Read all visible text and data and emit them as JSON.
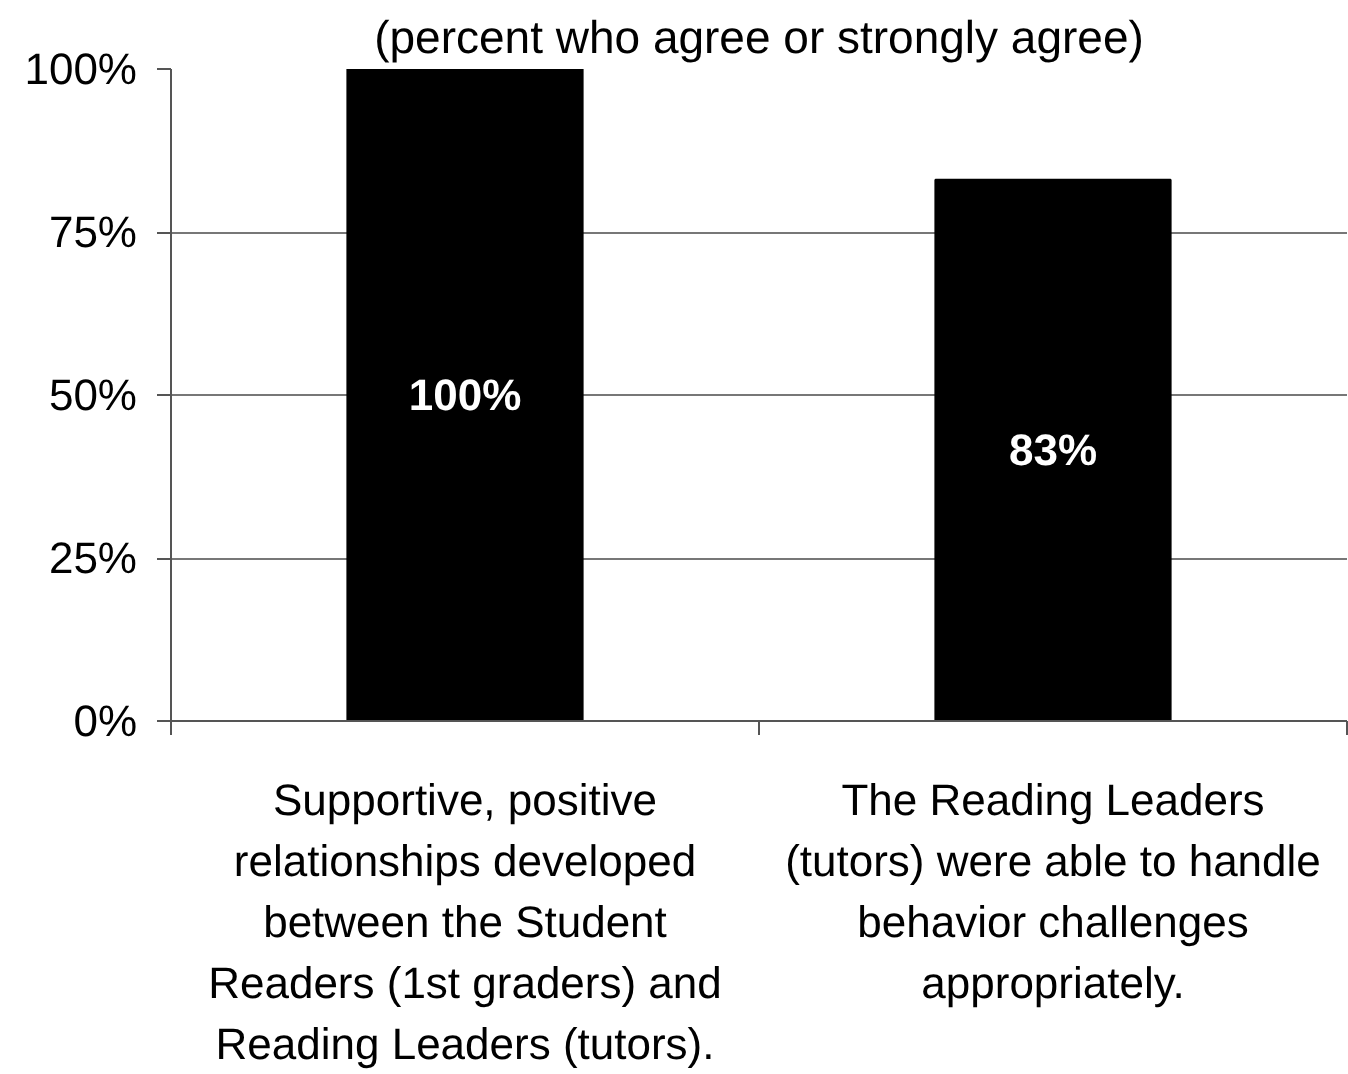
{
  "chart_data": {
    "type": "bar",
    "subtitle": "(percent who agree or strongly agree)",
    "categories": [
      "Supportive, positive\nrelationships developed\nbetween the Student\nReaders (1st graders) and\nReading Leaders (tutors).",
      "The Reading Leaders\n(tutors) were able to handle\nbehavior challenges\nappropriately."
    ],
    "values": [
      100,
      83
    ],
    "value_labels": [
      "100%",
      "83%"
    ],
    "color": "#000000",
    "ylim": [
      0,
      100
    ],
    "yticks": [
      {
        "value": 0,
        "label": "0%"
      },
      {
        "value": 25,
        "label": "25%"
      },
      {
        "value": 50,
        "label": "50%"
      },
      {
        "value": 75,
        "label": "75%"
      },
      {
        "value": 100,
        "label": "100%"
      }
    ],
    "grid": "y"
  }
}
